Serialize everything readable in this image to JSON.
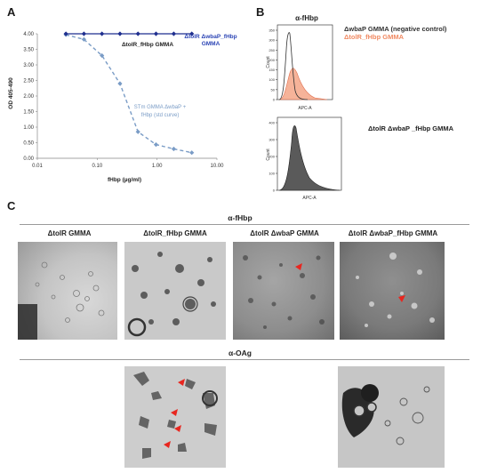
{
  "figure": {
    "panel_a_letter": "A",
    "panel_b_letter": "B",
    "panel_c_letter": "C"
  },
  "panel_a": {
    "ylabel": "OD 405-490",
    "xlabel": "fHbp (µg/ml)",
    "annotation_top_black": "ΔtolR_fHbp GMMA",
    "annotation_top_blue_line1": "ΔtolR ΔwbaP_fHbp",
    "annotation_top_blue_line2": "GMMA",
    "annotation_curve_line1": "STm GMMA ΔwbaP +",
    "annotation_curve_line2": "fHbp (std curve)",
    "colors": {
      "flat_series": "#1f2f8f",
      "std_curve": "#7a9cc6",
      "axis": "#888888"
    }
  },
  "chart_data": {
    "type": "line",
    "xscale": "log",
    "xlim": [
      0.01,
      10
    ],
    "ylim": [
      0,
      4
    ],
    "xticks": [
      "0.01",
      "0.10",
      "1.00",
      "10.00"
    ],
    "yticks": [
      "0.00",
      "0.50",
      "1.00",
      "1.50",
      "2.00",
      "2.50",
      "3.00",
      "3.50",
      "4.00"
    ],
    "series": [
      {
        "name": "STm GMMA ΔwbaP + fHbp (std curve)",
        "style": "dashed-diamond",
        "x": [
          0.03,
          0.06,
          0.12,
          0.24,
          0.48,
          0.96,
          1.9,
          3.8
        ],
        "y": [
          3.97,
          3.82,
          3.3,
          2.4,
          0.85,
          0.44,
          0.3,
          0.18
        ]
      },
      {
        "name": "ΔtolR_fHbp GMMA / ΔtolR ΔwbaP_fHbp GMMA",
        "style": "solid-diamond",
        "x": [
          0.03,
          0.06,
          0.12,
          0.24,
          0.48,
          0.96,
          1.9,
          3.8
        ],
        "y": [
          4.0,
          4.0,
          4.0,
          4.0,
          4.0,
          4.0,
          4.0,
          4.0
        ]
      }
    ]
  },
  "panel_b": {
    "title": "α-fHbp",
    "legend_line1": "ΔwbaP GMMA (negative control)",
    "legend_line2": "ΔtolR_fHbp GMMA",
    "hist2_title": "ΔtolR ΔwbaP _fHbp GMMA",
    "y_label": "Count",
    "x_label": "APC-A",
    "hist1_yticks": [
      "0",
      "50",
      "100",
      "150",
      "200",
      "250",
      "300",
      "350"
    ],
    "hist2_yticks": [
      "0",
      "100",
      "200",
      "300",
      "400"
    ],
    "colors": {
      "negative": "#333333",
      "positive": "#f08a63",
      "filled_gray": "#5a5a5a"
    }
  },
  "panel_c": {
    "fhbp_title": "α-fHbp",
    "oag_title": "α-OAg",
    "em_titles": [
      "ΔtolR GMMA",
      "ΔtolR_fHbp GMMA",
      "ΔtolR ΔwbaP GMMA",
      "ΔtolR ΔwbaP_fHbp GMMA"
    ],
    "arrow_color": "#e8261f"
  }
}
